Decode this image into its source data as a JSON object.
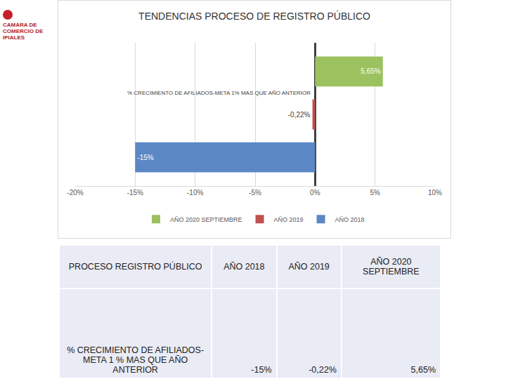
{
  "logo": {
    "text": "CAMARA DE COMERCIO DE IPIALES"
  },
  "chart_data": {
    "type": "bar",
    "orientation": "horizontal",
    "title": "TENDENCIAS PROCESO DE REGISTRO PÚBLICO",
    "categories": [
      "% CRECIMIENTO DE AFILIADOS-META 1% MAS QUE AÑO ANTERIOR"
    ],
    "series": [
      {
        "name": "AÑO 2018",
        "color": "#5b87c5",
        "values": [
          -15
        ],
        "value_labels": [
          "-15%"
        ]
      },
      {
        "name": "AÑO 2019",
        "color": "#c0504d",
        "values": [
          -0.22
        ],
        "value_labels": [
          "-0,22%"
        ]
      },
      {
        "name": "AÑO 2020 SEPTIEMBRE",
        "color": "#9bc25f",
        "values": [
          5.65
        ],
        "value_labels": [
          "5,65%"
        ]
      }
    ],
    "xlim": [
      -20,
      10
    ],
    "xticks": [
      {
        "value": -20,
        "label": "-20%"
      },
      {
        "value": -15,
        "label": "-15%"
      },
      {
        "value": -10,
        "label": "-10%"
      },
      {
        "value": -5,
        "label": "-5%"
      },
      {
        "value": 0,
        "label": "0%"
      },
      {
        "value": 5,
        "label": "5%"
      },
      {
        "value": 10,
        "label": "10%"
      }
    ],
    "grid": true,
    "legend": "bottom",
    "data_labels": true,
    "tick_labels": "x"
  },
  "table": {
    "header": [
      "PROCESO REGISTRO PÚBLICO",
      "AÑO 2018",
      "AÑO 2019",
      "AÑO 2020 SEPTIEMBRE"
    ],
    "rows": [
      [
        "% CRECIMIENTO DE AFILIADOS-META 1 % MAS QUE AÑO ANTERIOR",
        "-15%",
        "-0,22%",
        "5,65%"
      ]
    ]
  }
}
